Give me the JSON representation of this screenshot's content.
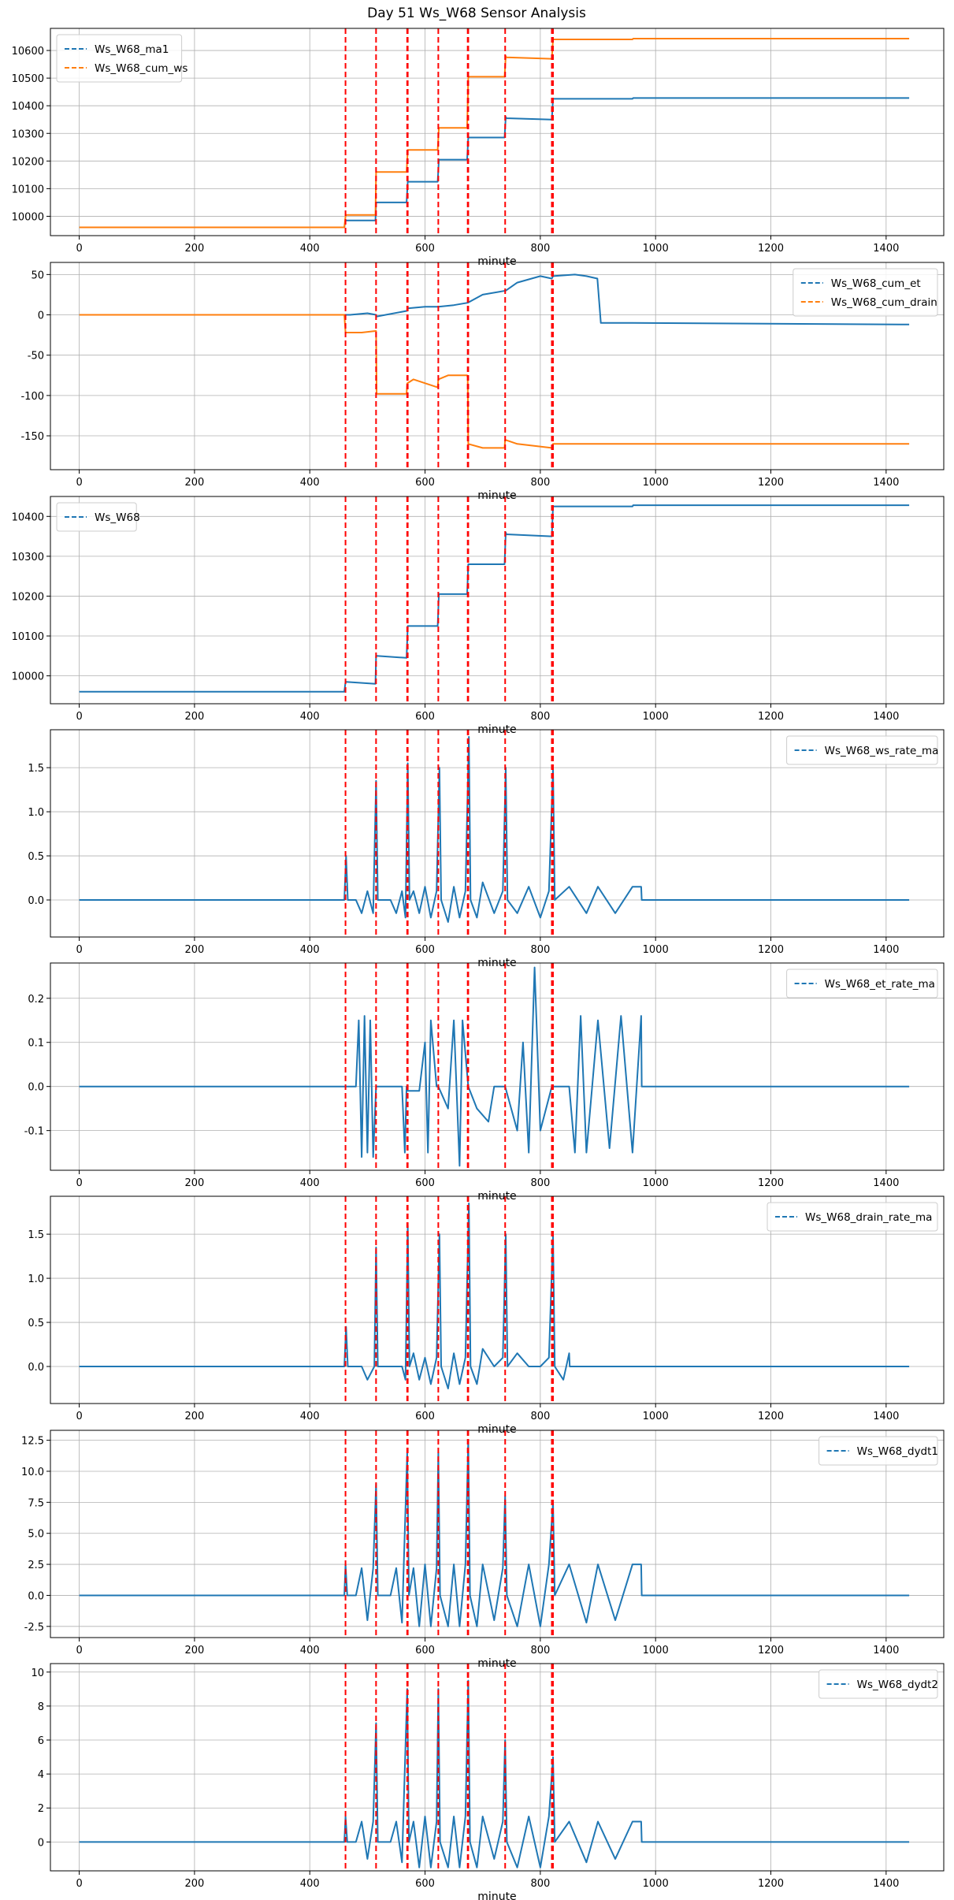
{
  "title": "Day 51 Ws_W68 Sensor Analysis",
  "colors": {
    "blue": "#1f77b4",
    "orange": "#ff7f0e",
    "event": "#ff0000",
    "grid": "#b0b0b0"
  },
  "event_lines_minute": [
    462,
    515,
    569,
    570,
    623,
    674,
    675,
    739,
    820,
    822
  ],
  "chart_data": [
    {
      "type": "line",
      "xlabel": "minute",
      "xlim": [
        -50,
        1500
      ],
      "xticks": [
        0,
        200,
        400,
        600,
        800,
        1000,
        1200,
        1400
      ],
      "ylim": [
        9930,
        10680
      ],
      "yticks": [
        10000,
        10100,
        10200,
        10300,
        10400,
        10500,
        10600
      ],
      "ytick_labels": [
        "10000",
        "10100",
        "10200",
        "10300",
        "10400",
        "10500",
        "10600"
      ],
      "grid": true,
      "legend_position": "upper-left",
      "series": [
        {
          "name": "Ws_W68_ma1",
          "color": "#1f77b4",
          "x": [
            0,
            460,
            462,
            463,
            514,
            515,
            516,
            568,
            570,
            571,
            622,
            624,
            625,
            673,
            675,
            676,
            738,
            740,
            741,
            820,
            822,
            823,
            960,
            961,
            1440
          ],
          "y": [
            9960,
            9960,
            9985,
            9985,
            9985,
            10050,
            10050,
            10050,
            10125,
            10125,
            10125,
            10205,
            10205,
            10205,
            10285,
            10285,
            10285,
            10360,
            10355,
            10350,
            10425,
            10425,
            10425,
            10428,
            10428
          ]
        },
        {
          "name": "Ws_W68_cum_ws",
          "color": "#ff7f0e",
          "x": [
            0,
            460,
            462,
            463,
            514,
            515,
            516,
            568,
            570,
            571,
            622,
            624,
            625,
            673,
            675,
            676,
            738,
            740,
            741,
            820,
            822,
            823,
            960,
            961,
            1440
          ],
          "y": [
            9960,
            9960,
            10000,
            10005,
            10005,
            10160,
            10160,
            10160,
            10240,
            10240,
            10240,
            10320,
            10320,
            10320,
            10500,
            10505,
            10505,
            10580,
            10575,
            10570,
            10640,
            10640,
            10640,
            10643,
            10643
          ]
        }
      ]
    },
    {
      "type": "line",
      "xlabel": "minute",
      "xlim": [
        -50,
        1500
      ],
      "xticks": [
        0,
        200,
        400,
        600,
        800,
        1000,
        1200,
        1400
      ],
      "ylim": [
        -192,
        65
      ],
      "yticks": [
        -150,
        -100,
        -50,
        0,
        50
      ],
      "ytick_labels": [
        "-150",
        "-100",
        "-50",
        "0",
        "50"
      ],
      "grid": true,
      "legend_position": "upper-right",
      "series": [
        {
          "name": "Ws_W68_cum_et",
          "color": "#1f77b4",
          "x": [
            0,
            460,
            470,
            500,
            515,
            516,
            569,
            570,
            600,
            623,
            650,
            674,
            700,
            740,
            760,
            800,
            820,
            822,
            860,
            880,
            899,
            905,
            960,
            1440
          ],
          "y": [
            0,
            0,
            0,
            2,
            0,
            -2,
            5,
            8,
            10,
            10,
            12,
            15,
            25,
            30,
            40,
            48,
            45,
            48,
            50,
            48,
            45,
            -10,
            -10,
            -12
          ]
        },
        {
          "name": "Ws_W68_cum_drain",
          "color": "#ff7f0e",
          "x": [
            0,
            460,
            462,
            490,
            514,
            515,
            516,
            568,
            569,
            580,
            622,
            623,
            640,
            673,
            674,
            675,
            700,
            738,
            739,
            760,
            820,
            822,
            850,
            1440
          ],
          "y": [
            0,
            0,
            -22,
            -22,
            -20,
            -20,
            -98,
            -98,
            -85,
            -80,
            -90,
            -80,
            -75,
            -75,
            -78,
            -160,
            -165,
            -165,
            -155,
            -160,
            -165,
            -160,
            -160,
            -160
          ]
        }
      ]
    },
    {
      "type": "line",
      "xlabel": "minute",
      "xlim": [
        -50,
        1500
      ],
      "xticks": [
        0,
        200,
        400,
        600,
        800,
        1000,
        1200,
        1400
      ],
      "ylim": [
        9930,
        10450
      ],
      "yticks": [
        10000,
        10100,
        10200,
        10300,
        10400
      ],
      "ytick_labels": [
        "10000",
        "10100",
        "10200",
        "10300",
        "10400"
      ],
      "grid": true,
      "legend_position": "upper-left",
      "series": [
        {
          "name": "Ws_W68",
          "color": "#1f77b4",
          "x": [
            0,
            460,
            462,
            463,
            514,
            515,
            516,
            568,
            570,
            571,
            622,
            624,
            625,
            673,
            675,
            676,
            738,
            740,
            741,
            820,
            822,
            823,
            960,
            961,
            1440
          ],
          "y": [
            9960,
            9960,
            9985,
            9985,
            9980,
            10050,
            10050,
            10045,
            10125,
            10125,
            10125,
            10205,
            10205,
            10205,
            10280,
            10280,
            10280,
            10360,
            10355,
            10350,
            10425,
            10425,
            10425,
            10428,
            10428
          ]
        }
      ]
    },
    {
      "type": "line",
      "xlabel": "minute",
      "xlim": [
        -50,
        1500
      ],
      "xticks": [
        0,
        200,
        400,
        600,
        800,
        1000,
        1200,
        1400
      ],
      "ylim": [
        -0.42,
        1.93
      ],
      "yticks": [
        0.0,
        0.5,
        1.0,
        1.5
      ],
      "ytick_labels": [
        "0.0",
        "0.5",
        "1.0",
        "1.5"
      ],
      "grid": true,
      "legend_position": "upper-right",
      "series": [
        {
          "name": "Ws_W68_ws_rate_ma",
          "color": "#1f77b4",
          "x": [
            0,
            460,
            463,
            466,
            480,
            490,
            500,
            510,
            515,
            518,
            525,
            540,
            550,
            560,
            566,
            570,
            573,
            580,
            590,
            600,
            610,
            620,
            625,
            628,
            640,
            650,
            660,
            670,
            676,
            679,
            690,
            700,
            720,
            735,
            740,
            743,
            760,
            780,
            800,
            815,
            822,
            825,
            850,
            880,
            900,
            930,
            960,
            975,
            976,
            1440
          ],
          "y": [
            0,
            0,
            0.5,
            0,
            0,
            -0.15,
            0.1,
            -0.15,
            1.35,
            0,
            0,
            0,
            -0.15,
            0.1,
            -0.2,
            1.55,
            0,
            0.1,
            -0.15,
            0.15,
            -0.2,
            0.1,
            1.5,
            0,
            -0.25,
            0.15,
            -0.2,
            0.1,
            1.85,
            0,
            -0.2,
            0.2,
            -0.15,
            0.1,
            1.5,
            0,
            -0.15,
            0.15,
            -0.2,
            0.1,
            1.5,
            0,
            0.15,
            -0.15,
            0.15,
            -0.15,
            0.15,
            0.15,
            0,
            0
          ]
        }
      ]
    },
    {
      "type": "line",
      "xlabel": "minute",
      "xlim": [
        -50,
        1500
      ],
      "xticks": [
        0,
        200,
        400,
        600,
        800,
        1000,
        1200,
        1400
      ],
      "ylim": [
        -0.19,
        0.28
      ],
      "yticks": [
        -0.1,
        0.0,
        0.1,
        0.2
      ],
      "ytick_labels": [
        "-0.1",
        "0.0",
        "0.1",
        "0.2"
      ],
      "grid": true,
      "legend_position": "upper-right",
      "series": [
        {
          "name": "Ws_W68_et_rate_ma",
          "color": "#1f77b4",
          "x": [
            0,
            460,
            480,
            485,
            490,
            495,
            500,
            505,
            510,
            515,
            520,
            560,
            565,
            568,
            570,
            590,
            600,
            605,
            610,
            620,
            623,
            640,
            650,
            660,
            665,
            675,
            690,
            710,
            720,
            739,
            760,
            770,
            780,
            790,
            800,
            820,
            850,
            860,
            870,
            880,
            900,
            920,
            940,
            960,
            975,
            976,
            1440
          ],
          "y": [
            0,
            0,
            0,
            0.15,
            -0.16,
            0.16,
            -0.15,
            0.15,
            -0.16,
            0,
            0,
            0,
            -0.15,
            0,
            -0.01,
            -0.01,
            0.1,
            -0.15,
            0.15,
            0,
            0,
            -0.05,
            0.15,
            -0.18,
            0.15,
            0,
            -0.05,
            -0.08,
            0,
            0,
            -0.1,
            0.1,
            -0.15,
            0.27,
            -0.1,
            0,
            0,
            -0.15,
            0.16,
            -0.15,
            0.15,
            -0.14,
            0.16,
            -0.15,
            0.16,
            0,
            0
          ]
        }
      ]
    },
    {
      "type": "line",
      "xlabel": "minute",
      "xlim": [
        -50,
        1500
      ],
      "xticks": [
        0,
        200,
        400,
        600,
        800,
        1000,
        1200,
        1400
      ],
      "ylim": [
        -0.42,
        1.93
      ],
      "yticks": [
        0.0,
        0.5,
        1.0,
        1.5
      ],
      "ytick_labels": [
        "0.0",
        "0.5",
        "1.0",
        "1.5"
      ],
      "grid": true,
      "legend_position": "upper-right",
      "series": [
        {
          "name": "Ws_W68_drain_rate_ma",
          "color": "#1f77b4",
          "x": [
            0,
            460,
            463,
            466,
            490,
            500,
            512,
            515,
            518,
            560,
            566,
            570,
            573,
            580,
            590,
            600,
            610,
            620,
            625,
            628,
            640,
            650,
            660,
            670,
            676,
            679,
            690,
            700,
            720,
            735,
            740,
            743,
            760,
            780,
            800,
            815,
            822,
            825,
            840,
            850,
            851,
            1440
          ],
          "y": [
            0,
            0,
            0.45,
            0,
            0,
            -0.15,
            0,
            1.35,
            0,
            0,
            -0.15,
            1.6,
            0,
            0.15,
            -0.15,
            0.1,
            -0.2,
            0.1,
            1.5,
            0,
            -0.25,
            0.15,
            -0.2,
            0.1,
            1.85,
            0,
            -0.2,
            0.2,
            0,
            0.1,
            1.5,
            0,
            0.15,
            0,
            0,
            0.1,
            1.5,
            0,
            -0.15,
            0.15,
            0,
            0
          ]
        }
      ]
    },
    {
      "type": "line",
      "xlabel": "minute",
      "xlim": [
        -50,
        1500
      ],
      "xticks": [
        0,
        200,
        400,
        600,
        800,
        1000,
        1200,
        1400
      ],
      "ylim": [
        -3.4,
        13.3
      ],
      "yticks": [
        -2.5,
        0.0,
        2.5,
        5.0,
        7.5,
        10.0,
        12.5
      ],
      "ytick_labels": [
        "-2.5",
        "0.0",
        "2.5",
        "5.0",
        "7.5",
        "10.0",
        "12.5"
      ],
      "grid": true,
      "legend_position": "upper-right",
      "series": [
        {
          "name": "Ws_W68_dydt1",
          "color": "#1f77b4",
          "x": [
            0,
            460,
            462,
            465,
            480,
            490,
            500,
            510,
            515,
            518,
            540,
            550,
            560,
            569,
            572,
            580,
            590,
            600,
            610,
            620,
            623,
            626,
            640,
            650,
            660,
            670,
            675,
            678,
            690,
            700,
            720,
            735,
            739,
            742,
            760,
            780,
            800,
            815,
            822,
            825,
            850,
            880,
            900,
            930,
            960,
            975,
            976,
            1440
          ],
          "y": [
            0,
            0,
            2.5,
            0,
            0,
            2.2,
            -2,
            2.2,
            9.0,
            0,
            0,
            2.2,
            -2.2,
            11.5,
            0,
            2.2,
            -2.5,
            2.5,
            -2.5,
            2.2,
            11.5,
            0,
            -2.5,
            2.5,
            -2.5,
            2.5,
            12.5,
            0,
            -2.5,
            2.5,
            -2,
            2.2,
            8.0,
            0,
            -2.5,
            2.5,
            -2.5,
            2.5,
            7.5,
            0,
            2.5,
            -2.2,
            2.5,
            -2,
            2.5,
            2.5,
            0,
            0
          ]
        }
      ]
    },
    {
      "type": "line",
      "xlabel": "minute",
      "xlim": [
        -50,
        1500
      ],
      "xticks": [
        0,
        200,
        400,
        600,
        800,
        1000,
        1200,
        1400
      ],
      "ylim": [
        -1.7,
        10.5
      ],
      "yticks": [
        0,
        2,
        4,
        6,
        8,
        10
      ],
      "ytick_labels": [
        "0",
        "2",
        "4",
        "6",
        "8",
        "10"
      ],
      "grid": true,
      "legend_position": "upper-right",
      "series": [
        {
          "name": "Ws_W68_dydt2",
          "color": "#1f77b4",
          "x": [
            0,
            460,
            462,
            465,
            480,
            490,
            500,
            510,
            515,
            518,
            540,
            550,
            560,
            569,
            572,
            580,
            590,
            600,
            610,
            620,
            623,
            626,
            640,
            650,
            660,
            670,
            675,
            678,
            690,
            700,
            720,
            735,
            739,
            742,
            760,
            780,
            800,
            815,
            822,
            825,
            850,
            880,
            900,
            930,
            960,
            975,
            976,
            1440
          ],
          "y": [
            0,
            0,
            1.5,
            0,
            0,
            1.2,
            -1,
            1.2,
            7.0,
            0,
            0,
            1.2,
            -1.2,
            9.0,
            0,
            1.2,
            -1.5,
            1.5,
            -1.5,
            1.2,
            9.0,
            0,
            -1.5,
            1.5,
            -1.5,
            1.5,
            9.5,
            0,
            -1.5,
            1.5,
            -1,
            1.2,
            6.0,
            0,
            -1.5,
            1.5,
            -1.5,
            1.5,
            5.0,
            0,
            1.2,
            -1.2,
            1.2,
            -1,
            1.2,
            1.2,
            0,
            0
          ]
        }
      ]
    }
  ]
}
